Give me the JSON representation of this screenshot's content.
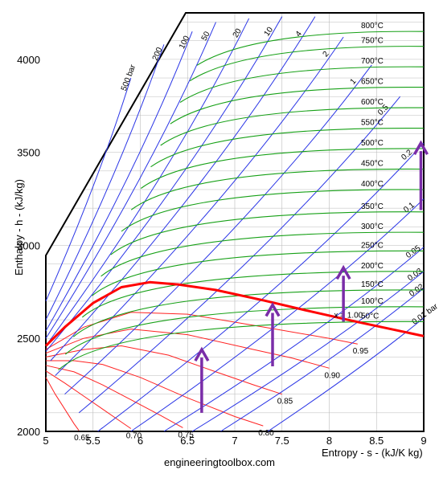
{
  "chart_data": {
    "type": "line",
    "title": "",
    "xlabel": "Entropy - s - (kJ/K kg)",
    "ylabel": "Enthalpy - h - (kJ/kg)",
    "xlim": [
      5,
      9
    ],
    "ylim": [
      2000,
      4250
    ],
    "x_ticks": [
      "5",
      "5.5",
      "6",
      "6.5",
      "7",
      "7.5",
      "8",
      "8.5",
      "9"
    ],
    "y_ticks": [
      "2000",
      "2500",
      "3000",
      "3500",
      "4000"
    ],
    "grid": true,
    "colors": {
      "isobar": "#2a35e6",
      "isotherm": "#16a016",
      "quality": "#ff2222",
      "saturation": "#ff0000",
      "arrow": "#7a2da8",
      "grid": "#bbbbbb"
    },
    "saturation_curve": {
      "name": "x = 1.00",
      "points": [
        [
          5.0,
          2460
        ],
        [
          5.2,
          2560
        ],
        [
          5.5,
          2690
        ],
        [
          5.8,
          2775
        ],
        [
          6.1,
          2802
        ],
        [
          6.4,
          2790
        ],
        [
          6.8,
          2760
        ],
        [
          7.3,
          2705
        ],
        [
          7.8,
          2645
        ],
        [
          8.3,
          2588
        ],
        [
          8.7,
          2545
        ],
        [
          9.0,
          2512
        ]
      ]
    },
    "quality_lines": [
      {
        "name": "0.95",
        "points": [
          [
            5.0,
            2440
          ],
          [
            5.4,
            2560
          ],
          [
            5.9,
            2640
          ],
          [
            6.5,
            2630
          ],
          [
            7.2,
            2570
          ],
          [
            8.0,
            2500
          ],
          [
            8.3,
            2470
          ]
        ]
      },
      {
        "name": "0.90",
        "points": [
          [
            5.0,
            2420
          ],
          [
            5.4,
            2500
          ],
          [
            5.9,
            2550
          ],
          [
            6.5,
            2520
          ],
          [
            7.2,
            2440
          ],
          [
            7.6,
            2395
          ],
          [
            8.0,
            2340
          ]
        ]
      },
      {
        "name": "0.85",
        "points": [
          [
            5.0,
            2400
          ],
          [
            5.4,
            2440
          ],
          [
            5.8,
            2460
          ],
          [
            6.3,
            2410
          ],
          [
            6.8,
            2320
          ],
          [
            7.2,
            2250
          ],
          [
            7.5,
            2200
          ]
        ]
      },
      {
        "name": "0.80",
        "points": [
          [
            5.0,
            2380
          ],
          [
            5.3,
            2380
          ],
          [
            5.6,
            2360
          ],
          [
            6.0,
            2290
          ],
          [
            6.5,
            2180
          ],
          [
            7.0,
            2080
          ],
          [
            7.3,
            2030
          ]
        ]
      },
      {
        "name": "0.75",
        "points": [
          [
            5.0,
            2355
          ],
          [
            5.3,
            2320
          ],
          [
            5.6,
            2250
          ],
          [
            5.9,
            2170
          ],
          [
            6.2,
            2090
          ],
          [
            6.45,
            2020
          ]
        ]
      },
      {
        "name": "0.70",
        "points": [
          [
            5.0,
            2325
          ],
          [
            5.2,
            2260
          ],
          [
            5.4,
            2190
          ],
          [
            5.6,
            2120
          ],
          [
            5.8,
            2050
          ],
          [
            5.9,
            2015
          ]
        ]
      },
      {
        "name": "0.65",
        "points": [
          [
            5.0,
            2290
          ],
          [
            5.1,
            2200
          ],
          [
            5.2,
            2120
          ],
          [
            5.3,
            2040
          ],
          [
            5.35,
            2005
          ]
        ]
      }
    ],
    "isobars": [
      {
        "name": "500 bar",
        "top": [
          5.9,
          3900
        ],
        "bottom": [
          5.0,
          2700
        ]
      },
      {
        "name": "200",
        "top": [
          6.25,
          4080
        ],
        "bottom": [
          5.0,
          2600
        ]
      },
      {
        "name": "100",
        "top": [
          6.55,
          4150
        ],
        "bottom": [
          5.0,
          2540
        ]
      },
      {
        "name": "50",
        "top": [
          6.8,
          4200
        ],
        "bottom": [
          5.0,
          2500
        ]
      },
      {
        "name": "20",
        "top": [
          7.15,
          4220
        ],
        "bottom": [
          5.0,
          2460
        ]
      },
      {
        "name": "10",
        "top": [
          7.5,
          4230
        ],
        "bottom": [
          5.0,
          2430
        ]
      },
      {
        "name": "4",
        "top": [
          7.85,
          4230
        ],
        "bottom": [
          5.05,
          2380
        ]
      },
      {
        "name": "2",
        "top": [
          8.15,
          4120
        ],
        "bottom": [
          5.1,
          2300
        ]
      },
      {
        "name": "1",
        "top": [
          8.45,
          3970
        ],
        "bottom": [
          5.2,
          2200
        ]
      },
      {
        "name": "0.5",
        "top": [
          8.75,
          3800
        ],
        "bottom": [
          5.35,
          2100
        ]
      },
      {
        "name": "0.2",
        "top": [
          9.0,
          3550
        ],
        "bottom": [
          5.55,
          2000
        ]
      },
      {
        "name": "0.1",
        "top": [
          9.0,
          3250
        ],
        "bottom": [
          5.9,
          2000
        ]
      },
      {
        "name": "0.05",
        "top": [
          9.0,
          2990
        ],
        "bottom": [
          6.25,
          2000
        ]
      },
      {
        "name": "0.03",
        "top": [
          9.0,
          2860
        ],
        "bottom": [
          6.55,
          2000
        ]
      },
      {
        "name": "0.02",
        "top": [
          9.0,
          2770
        ],
        "bottom": [
          6.85,
          2000
        ]
      },
      {
        "name": "0.01 bar",
        "top": [
          9.0,
          2610
        ],
        "bottom": [
          7.35,
          2000
        ]
      }
    ],
    "isotherms": [
      {
        "name": "800°C",
        "h": 4150
      },
      {
        "name": "750°C",
        "h": 4070
      },
      {
        "name": "700°C",
        "h": 3960
      },
      {
        "name": "650°C",
        "h": 3850
      },
      {
        "name": "600°C",
        "h": 3740
      },
      {
        "name": "550°C",
        "h": 3630
      },
      {
        "name": "500°C",
        "h": 3520
      },
      {
        "name": "450°C",
        "h": 3410
      },
      {
        "name": "400°C",
        "h": 3300
      },
      {
        "name": "350°C",
        "h": 3180
      },
      {
        "name": "300°C",
        "h": 3070
      },
      {
        "name": "250°C",
        "h": 2970
      },
      {
        "name": "200°C",
        "h": 2860
      },
      {
        "name": "150°C",
        "h": 2760
      },
      {
        "name": "100°C",
        "h": 2670
      },
      {
        "name": "50°C",
        "h": 2590
      }
    ],
    "arrows": [
      {
        "x": 6.65,
        "from": 2100,
        "to": 2440
      },
      {
        "x": 7.4,
        "from": 2350,
        "to": 2680
      },
      {
        "x": 8.15,
        "from": 2590,
        "to": 2880
      },
      {
        "x": 8.97,
        "from": 3190,
        "to": 3550
      }
    ]
  },
  "source_text": "engineeringtoolbox.com"
}
